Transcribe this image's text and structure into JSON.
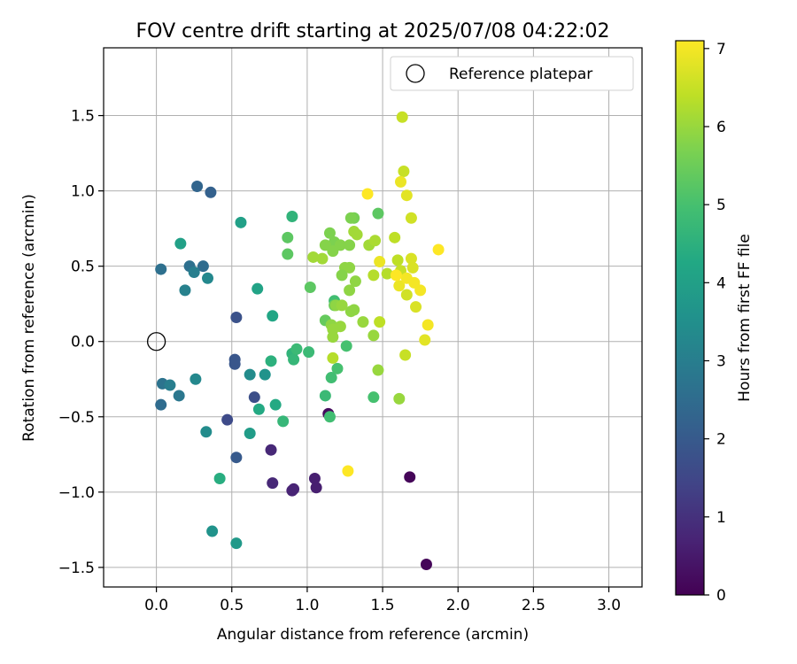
{
  "chart_data": {
    "type": "scatter",
    "title": "FOV centre drift starting at 2025/07/08 04:22:02",
    "xlabel": "Angular distance from reference (arcmin)",
    "ylabel": "Rotation from reference (arcmin)",
    "xlim": [
      -0.35,
      3.22
    ],
    "ylim": [
      -1.63,
      1.95
    ],
    "xticks": [
      "0.0",
      "0.5",
      "1.0",
      "1.5",
      "2.0",
      "2.5",
      "3.0"
    ],
    "xtick_values": [
      0.0,
      0.5,
      1.0,
      1.5,
      2.0,
      2.5,
      3.0
    ],
    "yticks": [
      "−1.5",
      "−1.0",
      "−0.5",
      "0.0",
      "0.5",
      "1.0",
      "1.5"
    ],
    "ytick_values": [
      -1.5,
      -1.0,
      -0.5,
      0.0,
      0.5,
      1.0,
      1.5
    ],
    "grid": true,
    "legend": {
      "position": "top-right",
      "label": "Reference platepar"
    },
    "reference_point": {
      "x": 0.0,
      "y": 0.0
    },
    "colorbar": {
      "label": "Hours from first FF file",
      "min": 0,
      "max": 7.1,
      "ticks": [
        "0",
        "1",
        "2",
        "3",
        "4",
        "5",
        "6",
        "7"
      ],
      "tick_values": [
        0,
        1,
        2,
        3,
        4,
        5,
        6,
        7
      ],
      "colormap": "viridis"
    },
    "points": [
      {
        "x": 1.79,
        "y": -1.48,
        "c": 0.1
      },
      {
        "x": 1.68,
        "y": -0.9,
        "c": 0.1
      },
      {
        "x": 1.14,
        "y": -0.48,
        "c": 0.2
      },
      {
        "x": 1.06,
        "y": -0.97,
        "c": 0.6
      },
      {
        "x": 1.05,
        "y": -0.91,
        "c": 0.6
      },
      {
        "x": 0.91,
        "y": -0.98,
        "c": 0.7
      },
      {
        "x": 0.9,
        "y": -0.99,
        "c": 0.7
      },
      {
        "x": 0.77,
        "y": -0.94,
        "c": 0.8
      },
      {
        "x": 0.76,
        "y": -0.72,
        "c": 0.8
      },
      {
        "x": 0.47,
        "y": -0.52,
        "c": 1.6
      },
      {
        "x": 0.65,
        "y": -0.37,
        "c": 1.7
      },
      {
        "x": 0.53,
        "y": 0.16,
        "c": 1.8
      },
      {
        "x": 0.52,
        "y": -0.12,
        "c": 1.9
      },
      {
        "x": 0.52,
        "y": -0.15,
        "c": 1.9
      },
      {
        "x": 0.53,
        "y": -0.77,
        "c": 2.0
      },
      {
        "x": 0.36,
        "y": 0.99,
        "c": 2.2
      },
      {
        "x": 0.27,
        "y": 1.03,
        "c": 2.3
      },
      {
        "x": 0.31,
        "y": 0.5,
        "c": 2.5
      },
      {
        "x": 0.22,
        "y": 0.5,
        "c": 2.6
      },
      {
        "x": 0.03,
        "y": 0.48,
        "c": 2.6
      },
      {
        "x": 0.03,
        "y": -0.42,
        "c": 2.5
      },
      {
        "x": 0.04,
        "y": -0.28,
        "c": 2.7
      },
      {
        "x": 0.15,
        "y": -0.36,
        "c": 2.8
      },
      {
        "x": 0.09,
        "y": -0.29,
        "c": 3.0
      },
      {
        "x": 0.25,
        "y": 0.46,
        "c": 3.0
      },
      {
        "x": 0.19,
        "y": 0.34,
        "c": 3.1
      },
      {
        "x": 0.34,
        "y": 0.42,
        "c": 3.3
      },
      {
        "x": 0.26,
        "y": -0.25,
        "c": 3.3
      },
      {
        "x": 0.33,
        "y": -0.6,
        "c": 3.4
      },
      {
        "x": 0.62,
        "y": -0.22,
        "c": 3.4
      },
      {
        "x": 0.72,
        "y": -0.22,
        "c": 3.6
      },
      {
        "x": 0.37,
        "y": -1.26,
        "c": 3.6
      },
      {
        "x": 0.53,
        "y": -1.34,
        "c": 3.8
      },
      {
        "x": 0.62,
        "y": -0.61,
        "c": 3.9
      },
      {
        "x": 0.16,
        "y": 0.65,
        "c": 4.0
      },
      {
        "x": 0.56,
        "y": 0.79,
        "c": 4.0
      },
      {
        "x": 0.67,
        "y": 0.35,
        "c": 4.1
      },
      {
        "x": 0.77,
        "y": 0.17,
        "c": 4.2
      },
      {
        "x": 0.79,
        "y": -0.42,
        "c": 4.3
      },
      {
        "x": 0.68,
        "y": -0.45,
        "c": 4.3
      },
      {
        "x": 0.42,
        "y": -0.91,
        "c": 4.4
      },
      {
        "x": 0.76,
        "y": -0.13,
        "c": 4.5
      },
      {
        "x": 0.9,
        "y": 0.83,
        "c": 4.6
      },
      {
        "x": 0.9,
        "y": -0.08,
        "c": 4.6
      },
      {
        "x": 0.84,
        "y": -0.53,
        "c": 4.7
      },
      {
        "x": 0.91,
        "y": -0.12,
        "c": 4.7
      },
      {
        "x": 0.93,
        "y": -0.05,
        "c": 4.8
      },
      {
        "x": 1.01,
        "y": -0.07,
        "c": 4.8
      },
      {
        "x": 1.12,
        "y": -0.36,
        "c": 4.8
      },
      {
        "x": 1.15,
        "y": -0.5,
        "c": 4.9
      },
      {
        "x": 1.16,
        "y": -0.24,
        "c": 4.9
      },
      {
        "x": 1.2,
        "y": -0.18,
        "c": 5.0
      },
      {
        "x": 1.18,
        "y": 0.27,
        "c": 4.9
      },
      {
        "x": 1.26,
        "y": -0.03,
        "c": 5.0
      },
      {
        "x": 1.44,
        "y": -0.37,
        "c": 5.0
      },
      {
        "x": 0.87,
        "y": 0.69,
        "c": 5.3
      },
      {
        "x": 0.87,
        "y": 0.58,
        "c": 5.3
      },
      {
        "x": 1.02,
        "y": 0.36,
        "c": 5.3
      },
      {
        "x": 1.12,
        "y": 0.14,
        "c": 5.4
      },
      {
        "x": 1.18,
        "y": 0.24,
        "c": 5.5
      },
      {
        "x": 1.47,
        "y": 0.85,
        "c": 5.3
      },
      {
        "x": 1.31,
        "y": 0.82,
        "c": 5.6
      },
      {
        "x": 1.29,
        "y": 0.82,
        "c": 5.7
      },
      {
        "x": 1.15,
        "y": 0.72,
        "c": 5.7
      },
      {
        "x": 1.18,
        "y": 0.66,
        "c": 5.7
      },
      {
        "x": 1.12,
        "y": 0.64,
        "c": 5.8
      },
      {
        "x": 1.17,
        "y": 0.6,
        "c": 5.8
      },
      {
        "x": 1.22,
        "y": 0.64,
        "c": 5.8
      },
      {
        "x": 1.28,
        "y": 0.64,
        "c": 5.8
      },
      {
        "x": 1.25,
        "y": 0.49,
        "c": 5.9
      },
      {
        "x": 1.28,
        "y": 0.49,
        "c": 5.9
      },
      {
        "x": 1.23,
        "y": 0.44,
        "c": 5.8
      },
      {
        "x": 1.32,
        "y": 0.4,
        "c": 5.9
      },
      {
        "x": 1.28,
        "y": 0.34,
        "c": 5.9
      },
      {
        "x": 1.31,
        "y": 0.21,
        "c": 5.9
      },
      {
        "x": 1.29,
        "y": 0.2,
        "c": 5.9
      },
      {
        "x": 1.19,
        "y": 0.24,
        "c": 5.9
      },
      {
        "x": 1.23,
        "y": 0.24,
        "c": 6.0
      },
      {
        "x": 1.16,
        "y": 0.11,
        "c": 5.9
      },
      {
        "x": 1.17,
        "y": 0.08,
        "c": 6.0
      },
      {
        "x": 1.22,
        "y": 0.1,
        "c": 6.0
      },
      {
        "x": 1.17,
        "y": 0.03,
        "c": 6.0
      },
      {
        "x": 1.37,
        "y": 0.13,
        "c": 6.0
      },
      {
        "x": 1.44,
        "y": 0.04,
        "c": 6.0
      },
      {
        "x": 1.47,
        "y": -0.19,
        "c": 6.0
      },
      {
        "x": 1.61,
        "y": -0.38,
        "c": 6.0
      },
      {
        "x": 1.17,
        "y": -0.11,
        "c": 6.3
      },
      {
        "x": 1.04,
        "y": 0.56,
        "c": 6.1
      },
      {
        "x": 1.1,
        "y": 0.55,
        "c": 6.1
      },
      {
        "x": 1.31,
        "y": 0.73,
        "c": 6.1
      },
      {
        "x": 1.33,
        "y": 0.71,
        "c": 6.1
      },
      {
        "x": 1.41,
        "y": 0.64,
        "c": 6.1
      },
      {
        "x": 1.44,
        "y": 0.44,
        "c": 6.3
      },
      {
        "x": 1.45,
        "y": 0.67,
        "c": 6.2
      },
      {
        "x": 1.48,
        "y": 0.13,
        "c": 6.4
      },
      {
        "x": 1.53,
        "y": 0.45,
        "c": 6.3
      },
      {
        "x": 1.58,
        "y": 0.69,
        "c": 6.4
      },
      {
        "x": 1.6,
        "y": 0.54,
        "c": 6.4
      },
      {
        "x": 1.63,
        "y": 1.49,
        "c": 6.5
      },
      {
        "x": 1.64,
        "y": 1.13,
        "c": 6.5
      },
      {
        "x": 1.65,
        "y": -0.09,
        "c": 6.5
      },
      {
        "x": 1.62,
        "y": 0.47,
        "c": 6.5
      },
      {
        "x": 1.66,
        "y": 0.31,
        "c": 6.6
      },
      {
        "x": 1.69,
        "y": 0.82,
        "c": 6.6
      },
      {
        "x": 1.7,
        "y": 0.49,
        "c": 6.7
      },
      {
        "x": 1.69,
        "y": 0.55,
        "c": 6.7
      },
      {
        "x": 1.72,
        "y": 0.23,
        "c": 6.7
      },
      {
        "x": 1.78,
        "y": 0.01,
        "c": 6.8
      },
      {
        "x": 1.66,
        "y": 0.97,
        "c": 6.8
      },
      {
        "x": 1.62,
        "y": 1.06,
        "c": 6.9
      },
      {
        "x": 1.48,
        "y": 0.53,
        "c": 6.9
      },
      {
        "x": 1.61,
        "y": 0.37,
        "c": 6.9
      },
      {
        "x": 1.66,
        "y": 0.42,
        "c": 7.0
      },
      {
        "x": 1.71,
        "y": 0.39,
        "c": 7.0
      },
      {
        "x": 1.75,
        "y": 0.34,
        "c": 7.0
      },
      {
        "x": 1.8,
        "y": 0.11,
        "c": 7.0
      },
      {
        "x": 1.87,
        "y": 0.61,
        "c": 7.1
      },
      {
        "x": 1.4,
        "y": 0.98,
        "c": 7.1
      },
      {
        "x": 1.27,
        "y": -0.86,
        "c": 7.1
      },
      {
        "x": 1.59,
        "y": 0.44,
        "c": 7.1
      }
    ]
  }
}
